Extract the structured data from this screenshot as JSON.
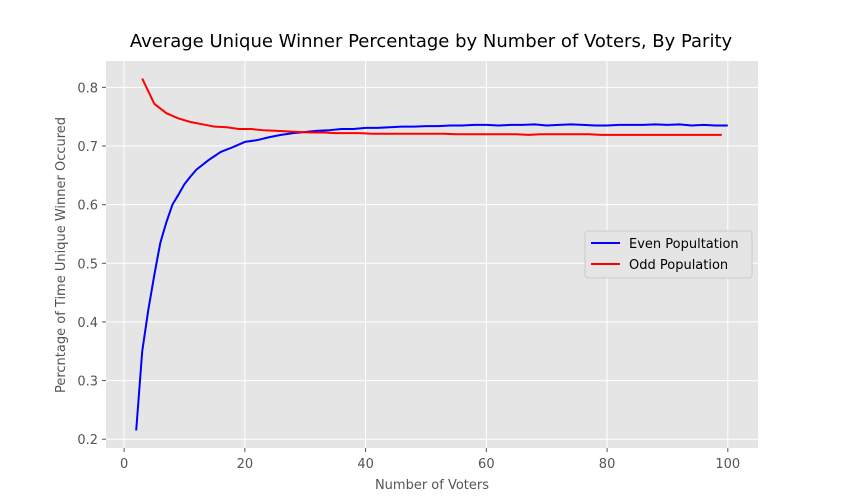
{
  "chart_data": {
    "type": "line",
    "title": "Average Unique Winner Percentage by Number of Voters, By Parity",
    "xlabel": "Number of Voters",
    "ylabel": "Percntage of Time Unique Winner Occured",
    "xlim": [
      -3,
      105
    ],
    "ylim": [
      0.185,
      0.845
    ],
    "xticks": [
      0,
      20,
      40,
      60,
      80,
      100
    ],
    "yticks": [
      0.2,
      0.3,
      0.4,
      0.5,
      0.6,
      0.7,
      0.8
    ],
    "grid": true,
    "legend_position": "center-right",
    "series": [
      {
        "name": "Even Popultation",
        "color": "#0000ff",
        "x": [
          2,
          3,
          4,
          5,
          6,
          7,
          8,
          9,
          10,
          11,
          12,
          13,
          14,
          15,
          16,
          18,
          20,
          22,
          24,
          26,
          28,
          30,
          32,
          34,
          36,
          38,
          40,
          42,
          44,
          46,
          48,
          50,
          52,
          54,
          56,
          58,
          60,
          62,
          64,
          66,
          68,
          70,
          72,
          74,
          76,
          78,
          80,
          82,
          84,
          86,
          88,
          90,
          92,
          94,
          96,
          98,
          100
        ],
        "values": [
          0.215,
          0.35,
          0.42,
          0.48,
          0.535,
          0.57,
          0.6,
          0.617,
          0.635,
          0.648,
          0.66,
          0.668,
          0.676,
          0.683,
          0.69,
          0.698,
          0.707,
          0.71,
          0.715,
          0.719,
          0.722,
          0.724,
          0.726,
          0.727,
          0.729,
          0.729,
          0.731,
          0.731,
          0.732,
          0.733,
          0.733,
          0.734,
          0.734,
          0.735,
          0.735,
          0.736,
          0.736,
          0.735,
          0.736,
          0.736,
          0.737,
          0.735,
          0.736,
          0.737,
          0.736,
          0.735,
          0.735,
          0.736,
          0.736,
          0.736,
          0.737,
          0.736,
          0.737,
          0.735,
          0.736,
          0.735,
          0.735
        ]
      },
      {
        "name": "Odd Population",
        "color": "#ff0000",
        "x": [
          3,
          5,
          7,
          9,
          11,
          13,
          15,
          17,
          19,
          21,
          23,
          25,
          27,
          29,
          31,
          33,
          35,
          37,
          39,
          41,
          43,
          45,
          47,
          49,
          51,
          53,
          55,
          57,
          59,
          61,
          63,
          65,
          67,
          69,
          71,
          73,
          75,
          77,
          79,
          81,
          83,
          85,
          87,
          89,
          91,
          93,
          95,
          97,
          99
        ],
        "values": [
          0.815,
          0.772,
          0.756,
          0.747,
          0.741,
          0.737,
          0.733,
          0.732,
          0.729,
          0.729,
          0.727,
          0.726,
          0.725,
          0.724,
          0.723,
          0.723,
          0.722,
          0.722,
          0.722,
          0.721,
          0.721,
          0.721,
          0.721,
          0.721,
          0.721,
          0.721,
          0.72,
          0.72,
          0.72,
          0.72,
          0.72,
          0.72,
          0.719,
          0.72,
          0.72,
          0.72,
          0.72,
          0.72,
          0.719,
          0.719,
          0.719,
          0.719,
          0.719,
          0.719,
          0.719,
          0.719,
          0.719,
          0.719,
          0.719
        ]
      }
    ]
  }
}
